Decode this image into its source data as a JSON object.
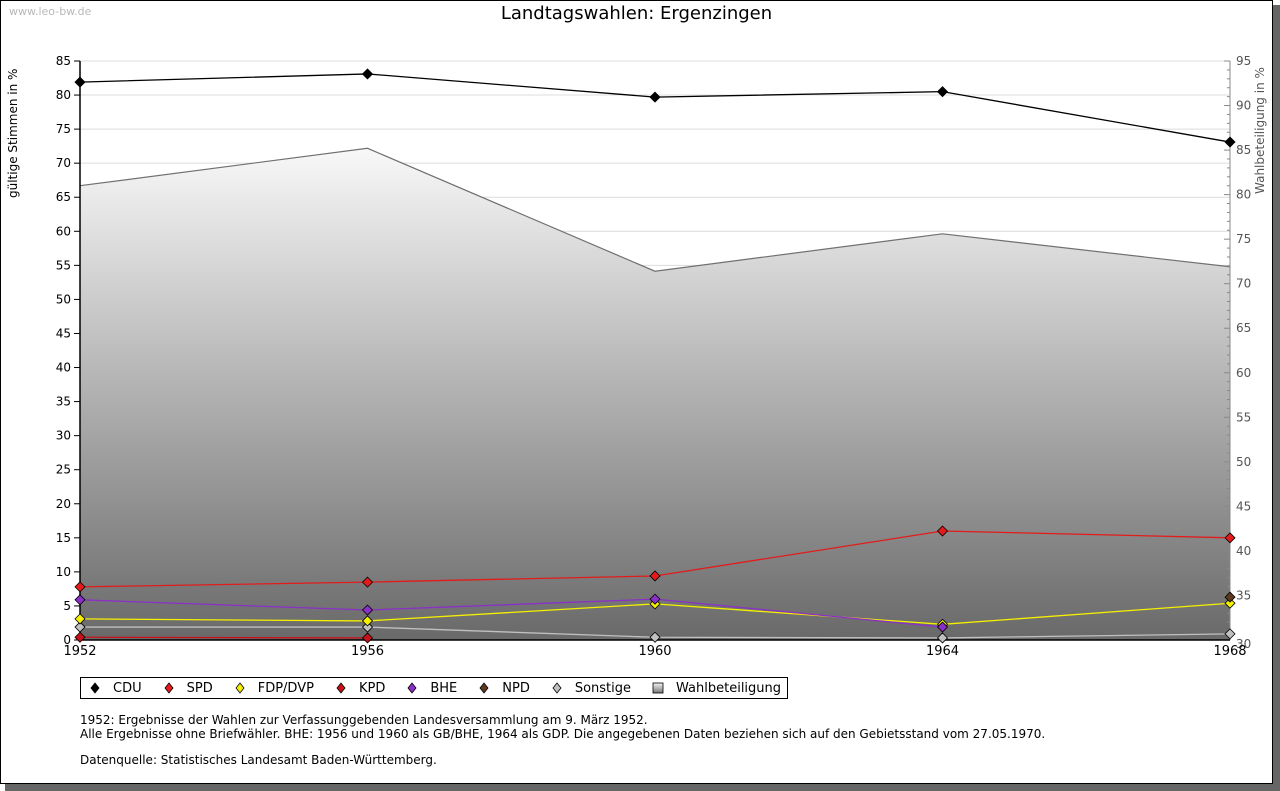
{
  "watermark": "www.leo-bw.de",
  "notes": {
    "line1": "1952: Ergebnisse der Wahlen zur Verfassunggebenden Landesversammlung am 9. März 1952.",
    "line2": "Alle Ergebnisse ohne Briefwähler. BHE: 1956 und 1960 als GB/BHE, 1964 als GDP. Die angegebenen Daten beziehen sich auf den Gebietsstand vom 27.05.1970.",
    "source": "Datenquelle: Statistisches Landesamt Baden-Württemberg."
  },
  "chart_data": {
    "type": "line",
    "title": "Landtagswahlen: Ergenzingen",
    "xlabel": "",
    "ylabel": "gültige Stimmen in %",
    "y2label": "Wahlbeteiligung in %",
    "categories": [
      "1952",
      "1956",
      "1960",
      "1964",
      "1968"
    ],
    "ylim": [
      0,
      85
    ],
    "y2lim": [
      30,
      95
    ],
    "yticks": [
      0,
      5,
      10,
      15,
      20,
      25,
      30,
      35,
      40,
      45,
      50,
      55,
      60,
      65,
      70,
      75,
      80,
      85
    ],
    "y2ticks": [
      30,
      35,
      40,
      45,
      50,
      55,
      60,
      65,
      70,
      75,
      80,
      85,
      90,
      95
    ],
    "grid": true,
    "legend_position": "bottom-left",
    "series": [
      {
        "name": "CDU",
        "color": "#000000",
        "axis": "left",
        "values": [
          81.9,
          83.1,
          79.7,
          80.5,
          73.1
        ]
      },
      {
        "name": "SPD",
        "color": "#e31b1b",
        "axis": "left",
        "values": [
          7.8,
          8.5,
          9.4,
          16.0,
          15.0
        ]
      },
      {
        "name": "FDP/DVP",
        "color": "#f5f000",
        "axis": "left",
        "values": [
          3.1,
          2.8,
          5.3,
          2.3,
          5.4
        ]
      },
      {
        "name": "KPD",
        "color": "#c8101a",
        "axis": "left",
        "values": [
          0.4,
          0.3,
          null,
          null,
          null
        ]
      },
      {
        "name": "BHE",
        "color": "#8a2fc8",
        "axis": "left",
        "values": [
          5.9,
          4.4,
          6.0,
          1.9,
          null
        ]
      },
      {
        "name": "NPD",
        "color": "#5c3a22",
        "axis": "left",
        "values": [
          null,
          null,
          null,
          null,
          6.3
        ]
      },
      {
        "name": "Sonstige",
        "color": "#c0c0c0",
        "axis": "left",
        "values": [
          1.9,
          1.9,
          0.4,
          0.3,
          0.9
        ]
      },
      {
        "name": "Wahlbeteiligung",
        "color": "#a0a0a0",
        "axis": "right",
        "type": "area",
        "values": [
          81.0,
          85.2,
          71.4,
          75.6,
          71.9
        ]
      }
    ]
  }
}
